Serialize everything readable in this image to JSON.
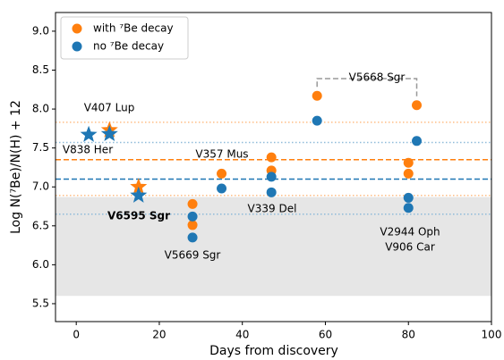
{
  "chart_data": {
    "type": "scatter",
    "x_label": "Days from discovery",
    "y_label": "Log N(⁷Be)/N(H) + 12",
    "xlim": [
      -5,
      100
    ],
    "ylim": [
      5.27,
      9.24
    ],
    "xticks": [
      0,
      20,
      40,
      60,
      80,
      100
    ],
    "yticks": [
      5.5,
      {
        "value": 6,
        "label": "6.0"
      },
      6.5,
      {
        "value": 7,
        "label": "7.0"
      },
      7.5,
      {
        "value": 8,
        "label": "8.0"
      },
      8.5,
      {
        "value": 9,
        "label": "9.0"
      }
    ],
    "legend": "upper left",
    "series": [
      {
        "name": "with ⁷Be decay",
        "color": "#ff7f0e",
        "x": [
          8,
          15,
          28,
          28,
          35,
          47,
          47,
          58,
          80,
          80,
          82
        ],
        "values": [
          7.73,
          7.0,
          6.78,
          6.51,
          7.17,
          7.38,
          7.21,
          8.17,
          7.31,
          7.17,
          8.05
        ],
        "markers": [
          "star",
          "star",
          "circle",
          "circle",
          "circle",
          "circle",
          "circle",
          "circle",
          "circle",
          "circle",
          "circle"
        ]
      },
      {
        "name": "no ⁷Be decay",
        "color": "#1f77b4",
        "x": [
          3,
          8,
          15,
          28,
          28,
          35,
          47,
          47,
          58,
          80,
          80,
          82
        ],
        "values": [
          7.67,
          7.68,
          6.89,
          6.62,
          6.35,
          6.98,
          7.13,
          6.93,
          7.85,
          6.86,
          6.73,
          7.59
        ],
        "markers": [
          "star",
          "star",
          "star",
          "circle",
          "circle",
          "circle",
          "circle",
          "circle",
          "circle",
          "circle",
          "circle",
          "circle"
        ]
      }
    ],
    "reference_lines": [
      {
        "value": 7.35,
        "color": "#ff7f0e",
        "style": "dashed"
      },
      {
        "value": 7.1,
        "color": "#1f77b4",
        "style": "dashed"
      },
      {
        "value": 7.83,
        "color": "#ffbe86",
        "style": "dotted"
      },
      {
        "value": 6.89,
        "color": "#ffbe86",
        "style": "dotted"
      },
      {
        "value": 7.57,
        "color": "#8fbbd9",
        "style": "dotted"
      },
      {
        "value": 6.65,
        "color": "#8fbbd9",
        "style": "dotted"
      }
    ],
    "band": {
      "from": 5.6,
      "to": 6.87,
      "color": "#e6e6e6"
    },
    "annotations": [
      "V407 Lup",
      "V838 Her",
      "V357 Mus",
      "V6595 Sgr",
      "V5669 Sgr",
      "V339 Del",
      "V5668 Sgr",
      "V2944 Oph",
      "V906 Car"
    ]
  }
}
